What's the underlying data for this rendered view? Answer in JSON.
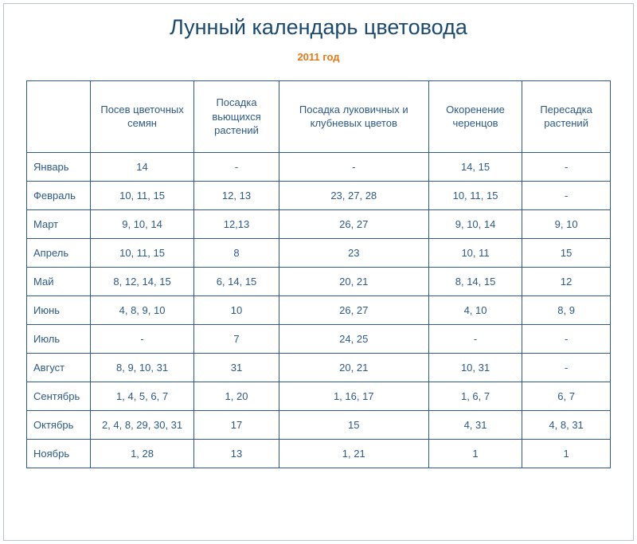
{
  "title": "Лунный календарь цветовода",
  "subtitle": "2011 год",
  "colors": {
    "title_color": "#1a4a72",
    "subtitle_color": "#e67817",
    "border_color": "#2c5a8a",
    "text_color": "#2c5a8a",
    "container_border": "#b8c4d0",
    "background": "#ffffff"
  },
  "typography": {
    "title_fontsize": 27,
    "subtitle_fontsize": 13,
    "header_fontsize": 13,
    "cell_fontsize": 13
  },
  "table": {
    "columns": [
      "",
      "Посев цветочных семян",
      "Посадка вьющихся растений",
      "Посадка луковичных и клубневых цветов",
      "Окоренение черенцов",
      "Пересадка растений"
    ],
    "rows": [
      {
        "month": "Январь",
        "c1": "14",
        "c2": "-",
        "c3": "-",
        "c4": "14, 15",
        "c5": "-"
      },
      {
        "month": "Февраль",
        "c1": "10, 11, 15",
        "c2": "12, 13",
        "c3": "23, 27, 28",
        "c4": "10, 11, 15",
        "c5": "-"
      },
      {
        "month": "Март",
        "c1": "9, 10, 14",
        "c2": "12,13",
        "c3": "26, 27",
        "c4": "9, 10, 14",
        "c5": "9, 10"
      },
      {
        "month": "Апрель",
        "c1": "10, 11, 15",
        "c2": "8",
        "c3": "23",
        "c4": "10, 11",
        "c5": "15"
      },
      {
        "month": "Май",
        "c1": "8, 12, 14, 15",
        "c2": "6, 14, 15",
        "c3": "20, 21",
        "c4": "8, 14, 15",
        "c5": "12"
      },
      {
        "month": "Июнь",
        "c1": "4, 8, 9, 10",
        "c2": "10",
        "c3": "26, 27",
        "c4": "4, 10",
        "c5": "8, 9"
      },
      {
        "month": "Июль",
        "c1": "-",
        "c2": "7",
        "c3": "24, 25",
        "c4": "-",
        "c5": "-"
      },
      {
        "month": "Август",
        "c1": "8, 9, 10, 31",
        "c2": "31",
        "c3": "20, 21",
        "c4": "10, 31",
        "c5": "-"
      },
      {
        "month": "Сентябрь",
        "c1": "1, 4, 5, 6, 7",
        "c2": "1, 20",
        "c3": "1, 16, 17",
        "c4": "1, 6, 7",
        "c5": "6, 7"
      },
      {
        "month": "Октябрь",
        "c1": "2, 4, 8, 29, 30, 31",
        "c2": "17",
        "c3": "15",
        "c4": "4, 31",
        "c5": "4, 8, 31"
      },
      {
        "month": "Ноябрь",
        "c1": "1, 28",
        "c2": "13",
        "c3": "1, 21",
        "c4": "1",
        "c5": "1"
      }
    ]
  }
}
